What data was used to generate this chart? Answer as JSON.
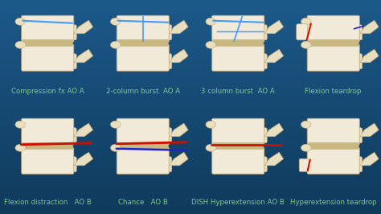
{
  "figsize": [
    4.74,
    2.66
  ],
  "dpi": 100,
  "bg_color_top": "#1c5a8a",
  "bg_color_mid": "#1a5276",
  "bg_color_bot": "#154768",
  "label_color": "#7dce7d",
  "top_row_labels": [
    "Compression fx AO A",
    "2-column burst  AO A",
    "3 column burst  AO A",
    "Flexion teardrop"
  ],
  "bottom_row_labels": [
    "Flexion distraction   AO B",
    "Chance   AO B",
    "DISH Hyperextension AO B",
    "Hyperextension teardrop"
  ],
  "label_fontsize": 6.2,
  "bone_color": "#f2ead8",
  "bone_edge": "#c8aa78",
  "bone_shadow": "#8a6a30",
  "disc_color": "#c8b880",
  "red_line": "#cc1100",
  "blue_line": "#2222cc",
  "spinous_color": "#e8dfc0"
}
